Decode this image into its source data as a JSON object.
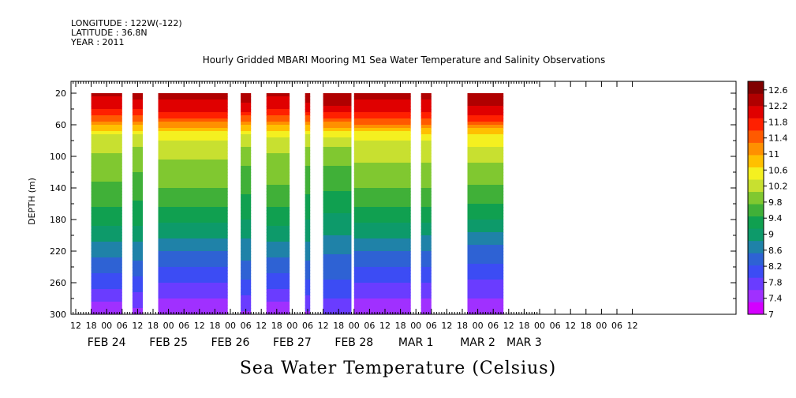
{
  "header": {
    "longitude": "LONGITUDE : 122W(-122)",
    "latitude": "LATITUDE : 36.8N",
    "year": "YEAR : 2011"
  },
  "chart_data": {
    "type": "heatmap",
    "title": "Hourly Gridded MBARI Mooring M1 Sea Water Temperature and Salinity Observations",
    "xlabel": "",
    "ylabel": "DEPTH (m)",
    "colorbar_title": "Sea Water Temperature (Celsius)",
    "y_range": [
      300,
      5
    ],
    "y_ticks": [
      20,
      60,
      100,
      140,
      180,
      220,
      260,
      300
    ],
    "x_range_hours": [
      0,
      144
    ],
    "hour_tick_labels": [
      "12",
      "18",
      "00",
      "06",
      "12",
      "18",
      "00",
      "06",
      "12",
      "18",
      "00",
      "06",
      "12",
      "18",
      "00",
      "06",
      "12",
      "18",
      "00",
      "06",
      "12",
      "18",
      "00",
      "06",
      "12",
      "18",
      "00",
      "06",
      "12",
      "18",
      "00",
      "06",
      "12",
      "18",
      "00",
      "06",
      "12"
    ],
    "day_labels": [
      {
        "text": "FEB 24",
        "hour": 12
      },
      {
        "text": "FEB 25",
        "hour": 36
      },
      {
        "text": "FEB 26",
        "hour": 60
      },
      {
        "text": "FEB 27",
        "hour": 84
      },
      {
        "text": "FEB 28",
        "hour": 108
      },
      {
        "text": "MAR  1",
        "hour": 132
      },
      {
        "text": "MAR  2",
        "hour": 156
      },
      {
        "text": "MAR  3",
        "hour": 174
      }
    ],
    "color_levels": [
      "7",
      "7.4",
      "7.8",
      "8.2",
      "8.6",
      "9",
      "9.4",
      "9.8",
      "10.2",
      "10.6",
      "11",
      "11.4",
      "11.8",
      "12.2",
      "12.6"
    ],
    "color_scale": [
      "#d400ff",
      "#a030ff",
      "#6a3cff",
      "#3c4cf4",
      "#2e62d4",
      "#1f82a8",
      "#0d9a6a",
      "#10a050",
      "#40b038",
      "#80c830",
      "#c8e030",
      "#f4f020",
      "#ffc000",
      "#ff9000",
      "#ff5a00",
      "#ff2000",
      "#e00000",
      "#b00000",
      "#800000"
    ],
    "data_segments": [
      {
        "start": "FEB 24 18",
        "end": "FEB 25 06"
      },
      {
        "start": "FEB 25 10",
        "end": "FEB 25 14"
      },
      {
        "start": "FEB 25 20",
        "end": "FEB 26 23"
      },
      {
        "start": "FEB 27 04",
        "end": "FEB 27 08"
      },
      {
        "start": "FEB 27 14",
        "end": "FEB 27 23"
      },
      {
        "start": "FEB 28 05",
        "end": "FEB 28 07"
      },
      {
        "start": "FEB 28 12",
        "end": "FEB 28 23"
      },
      {
        "start": "MAR 1 00",
        "end": "MAR 1 22"
      },
      {
        "start": "MAR 2 02",
        "end": "MAR 2 06"
      },
      {
        "start": "MAR 2 20",
        "end": "MAR 3 10"
      }
    ],
    "temperature_profile": [
      {
        "depth": 20,
        "temp": 12.4
      },
      {
        "depth": 40,
        "temp": 12.0
      },
      {
        "depth": 55,
        "temp": 11.4
      },
      {
        "depth": 65,
        "temp": 10.8
      },
      {
        "depth": 75,
        "temp": 10.3
      },
      {
        "depth": 100,
        "temp": 9.9
      },
      {
        "depth": 140,
        "temp": 9.5
      },
      {
        "depth": 180,
        "temp": 9.0
      },
      {
        "depth": 220,
        "temp": 8.4
      },
      {
        "depth": 260,
        "temp": 7.9
      },
      {
        "depth": 300,
        "temp": 7.3
      }
    ]
  }
}
